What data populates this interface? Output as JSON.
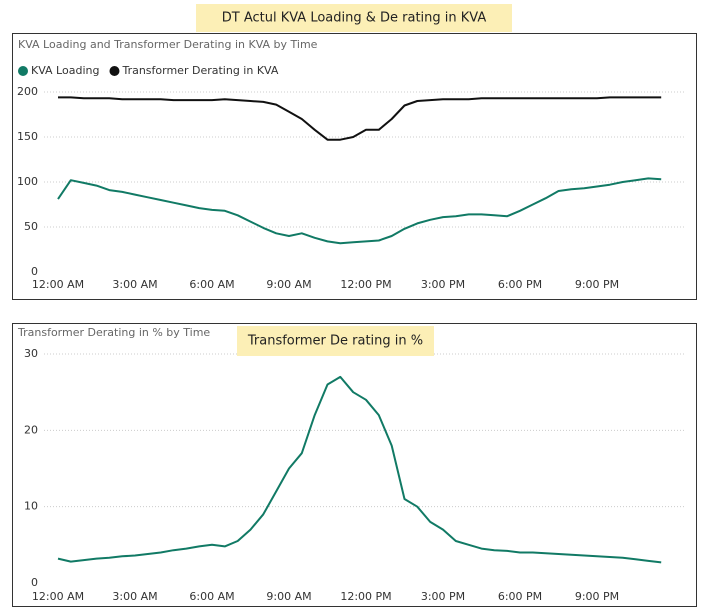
{
  "chart_data": [
    {
      "type": "line",
      "title": "KVA Loading and Transformer Derating in KVA by Time",
      "annotation": "DT Actul KVA Loading & De rating in KVA",
      "x": [
        0,
        0.5,
        1,
        1.5,
        2,
        2.5,
        3,
        3.5,
        4,
        4.5,
        5,
        5.5,
        6,
        6.5,
        7,
        7.5,
        8,
        8.5,
        9,
        9.5,
        10,
        10.5,
        11,
        11.5,
        12,
        12.5,
        13,
        13.5,
        14,
        14.5,
        15,
        15.5,
        16,
        16.5,
        17,
        17.5,
        18,
        18.5,
        19,
        19.5,
        20,
        20.5,
        21,
        21.5,
        22,
        22.5,
        23,
        23.5
      ],
      "xlim": [
        0,
        24
      ],
      "xticks": [
        {
          "value": 0,
          "label": "12:00 AM"
        },
        {
          "value": 3,
          "label": "3:00 AM"
        },
        {
          "value": 6,
          "label": "6:00 AM"
        },
        {
          "value": 9,
          "label": "9:00 AM"
        },
        {
          "value": 12,
          "label": "12:00 PM"
        },
        {
          "value": 15,
          "label": "3:00 PM"
        },
        {
          "value": 18,
          "label": "6:00 PM"
        },
        {
          "value": 21,
          "label": "9:00 PM"
        }
      ],
      "ylim": [
        0,
        200
      ],
      "yticks": [
        0,
        50,
        100,
        150,
        200
      ],
      "grid": true,
      "series": [
        {
          "name": "KVA Loading",
          "color": "#117a65",
          "values": [
            81,
            102,
            99,
            96,
            91,
            89,
            86,
            83,
            80,
            77,
            74,
            71,
            69,
            68,
            63,
            56,
            49,
            43,
            40,
            43,
            38,
            34,
            32,
            33,
            34,
            35,
            40,
            48,
            54,
            58,
            61,
            62,
            64,
            64,
            63,
            62,
            68,
            75,
            82,
            90,
            92,
            93,
            95,
            97,
            100,
            102,
            104,
            103
          ]
        },
        {
          "name": "Transformer Derating in KVA",
          "color": "#111111",
          "values": [
            194,
            194,
            193,
            193,
            193,
            192,
            192,
            192,
            192,
            191,
            191,
            191,
            191,
            192,
            191,
            190,
            189,
            186,
            178,
            170,
            158,
            147,
            147,
            150,
            158,
            158,
            170,
            185,
            190,
            191,
            192,
            192,
            192,
            193,
            193,
            193,
            193,
            193,
            193,
            193,
            193,
            193,
            193,
            194,
            194,
            194,
            194,
            194
          ]
        }
      ]
    },
    {
      "type": "line",
      "title": "Transformer Derating in % by Time",
      "annotation": "Transformer De rating in %",
      "x": [
        0,
        0.5,
        1,
        1.5,
        2,
        2.5,
        3,
        3.5,
        4,
        4.5,
        5,
        5.5,
        6,
        6.5,
        7,
        7.5,
        8,
        8.5,
        9,
        9.5,
        10,
        10.5,
        11,
        11.5,
        12,
        12.5,
        13,
        13.5,
        14,
        14.5,
        15,
        15.5,
        16,
        16.5,
        17,
        17.5,
        18,
        18.5,
        19,
        19.5,
        20,
        20.5,
        21,
        21.5,
        22,
        22.5,
        23,
        23.5
      ],
      "xlim": [
        0,
        24
      ],
      "xticks": [
        {
          "value": 0,
          "label": "12:00 AM"
        },
        {
          "value": 3,
          "label": "3:00 AM"
        },
        {
          "value": 6,
          "label": "6:00 AM"
        },
        {
          "value": 9,
          "label": "9:00 AM"
        },
        {
          "value": 12,
          "label": "12:00 PM"
        },
        {
          "value": 15,
          "label": "3:00 PM"
        },
        {
          "value": 18,
          "label": "6:00 PM"
        },
        {
          "value": 21,
          "label": "9:00 PM"
        }
      ],
      "ylim": [
        0,
        30
      ],
      "yticks": [
        0,
        10,
        20,
        30
      ],
      "grid": true,
      "color": "#117a65",
      "values": [
        3.2,
        2.8,
        3,
        3.2,
        3.3,
        3.5,
        3.6,
        3.8,
        4,
        4.3,
        4.5,
        4.8,
        5,
        4.8,
        5.5,
        7,
        9,
        12,
        15,
        17,
        22,
        26,
        27,
        25,
        24,
        22,
        18,
        11,
        10,
        8,
        7,
        5.5,
        5,
        4.5,
        4.3,
        4.2,
        4,
        4,
        3.9,
        3.8,
        3.7,
        3.6,
        3.5,
        3.4,
        3.3,
        3.1,
        2.9,
        2.7
      ]
    }
  ]
}
